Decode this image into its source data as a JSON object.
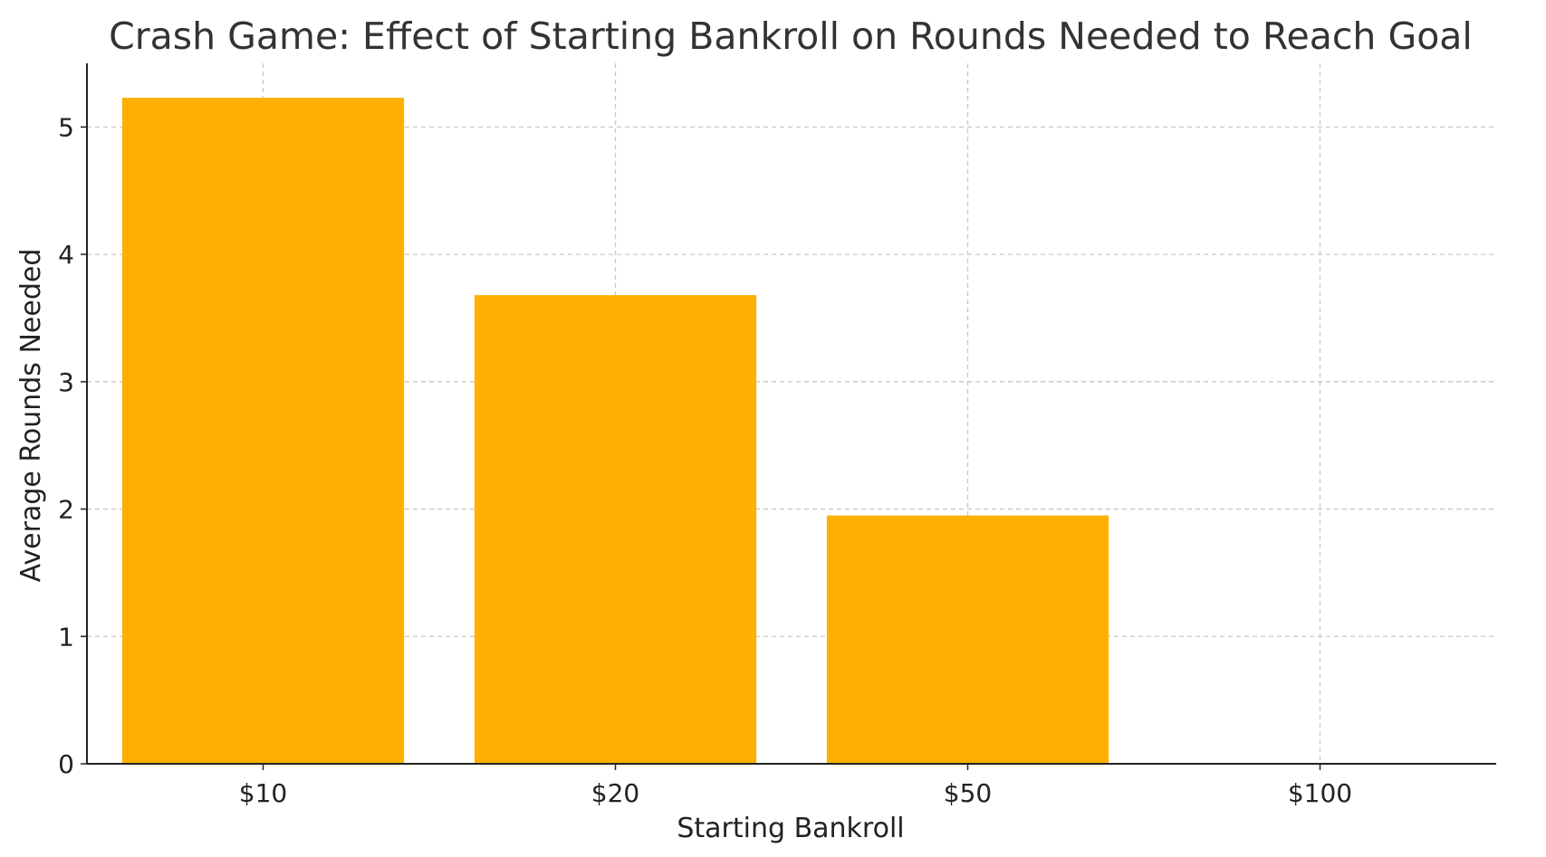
{
  "chart_data": {
    "type": "bar",
    "title": "Crash Game: Effect of Starting Bankroll on Rounds Needed to Reach Goal",
    "xlabel": "Starting Bankroll",
    "ylabel": "Average Rounds Needed",
    "categories": [
      "$10",
      "$20",
      "$50",
      "$100"
    ],
    "values": [
      5.23,
      3.68,
      1.95,
      0
    ],
    "ylim": [
      0,
      5.5
    ],
    "yticks": [
      0,
      1,
      2,
      3,
      4,
      5
    ],
    "bar_color": "#FFB000",
    "grid": true,
    "legend": "none"
  }
}
